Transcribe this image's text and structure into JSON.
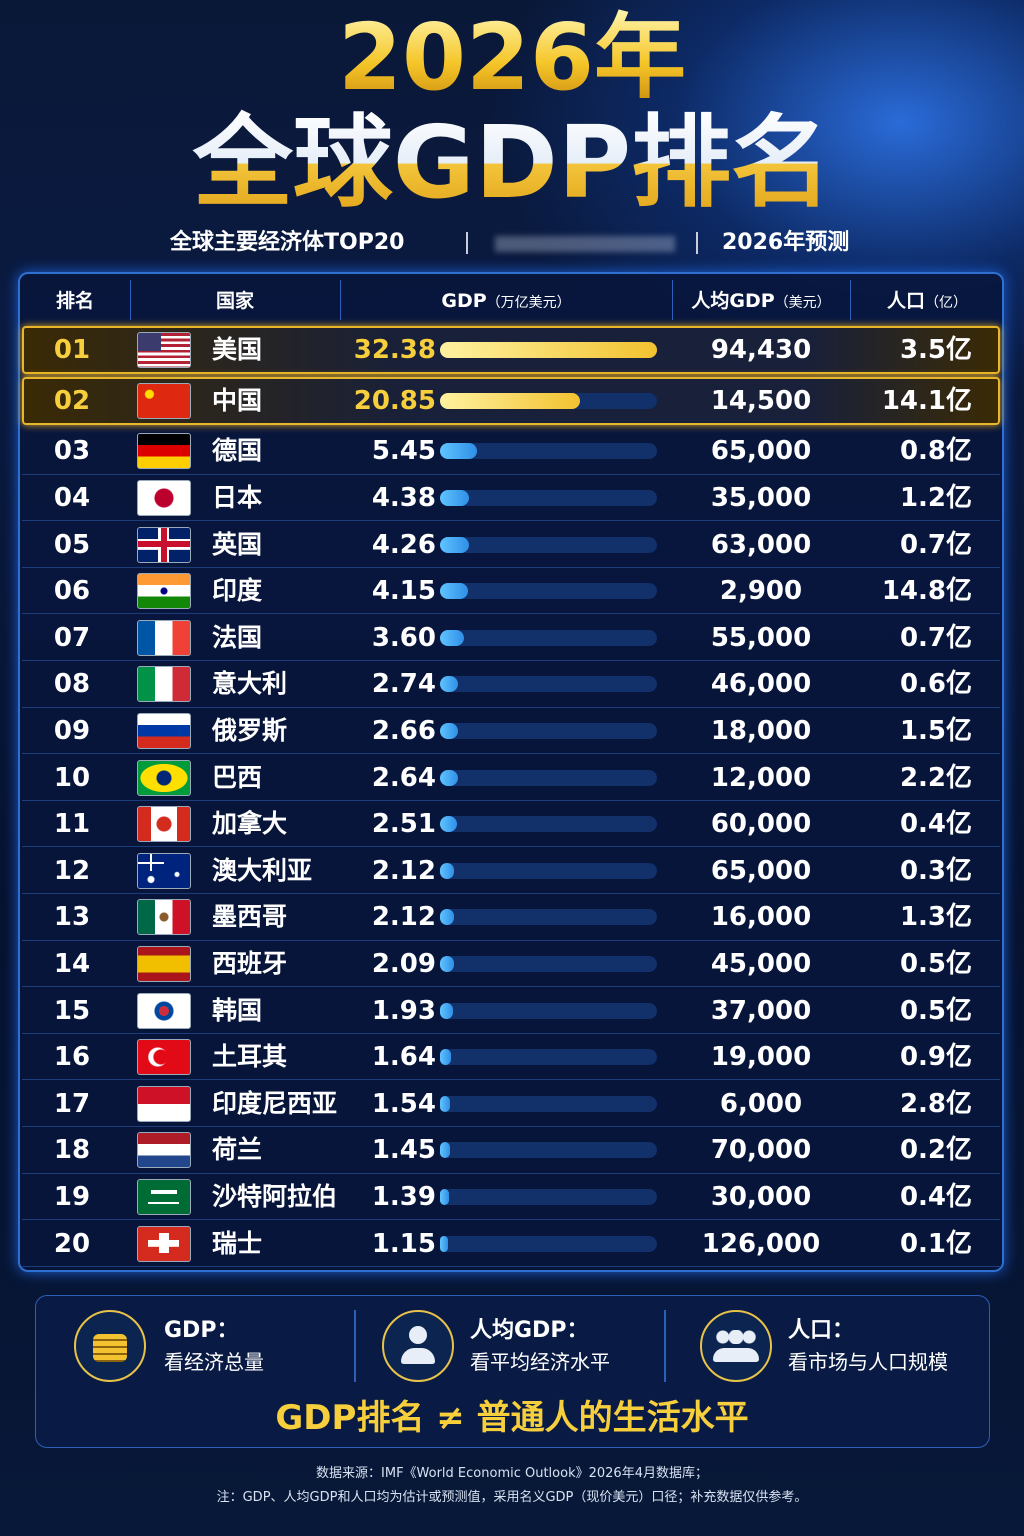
{
  "header": {
    "title_line1": "2026年",
    "title_line2": "全球GDP排名",
    "subtitle": [
      "全球主要经济体TOP20",
      "2026年预测"
    ]
  },
  "table": {
    "columns": [
      {
        "label": "排名"
      },
      {
        "label": "国家"
      },
      {
        "label": "GDP",
        "unit": "（万亿美元）"
      },
      {
        "label": "人均GDP",
        "unit": "（美元）"
      },
      {
        "label": "人口",
        "unit": "（亿）"
      }
    ],
    "rows": [
      [
        "01",
        "美国",
        "32.38",
        "94,430",
        "3.5亿"
      ],
      [
        "02",
        "中国",
        "20.85",
        "14,500",
        "14.1亿"
      ],
      [
        "03",
        "德国",
        "5.45",
        "65,000",
        "0.8亿"
      ],
      [
        "04",
        "日本",
        "4.38",
        "35,000",
        "1.2亿"
      ],
      [
        "05",
        "英国",
        "4.26",
        "63,000",
        "0.7亿"
      ],
      [
        "06",
        "印度",
        "4.15",
        "2,900",
        "14.8亿"
      ],
      [
        "07",
        "法国",
        "3.60",
        "55,000",
        "0.7亿"
      ],
      [
        "08",
        "意大利",
        "2.74",
        "46,000",
        "0.6亿"
      ],
      [
        "09",
        "俄罗斯",
        "2.66",
        "18,000",
        "1.5亿"
      ],
      [
        "10",
        "巴西",
        "2.64",
        "12,000",
        "2.2亿"
      ],
      [
        "11",
        "加拿大",
        "2.51",
        "60,000",
        "0.4亿"
      ],
      [
        "12",
        "澳大利亚",
        "2.12",
        "65,000",
        "0.3亿"
      ],
      [
        "13",
        "墨西哥",
        "2.12",
        "16,000",
        "1.3亿"
      ],
      [
        "14",
        "西班牙",
        "2.09",
        "45,000",
        "0.5亿"
      ],
      [
        "15",
        "韩国",
        "1.93",
        "37,000",
        "0.5亿"
      ],
      [
        "16",
        "土耳其",
        "1.64",
        "19,000",
        "0.9亿"
      ],
      [
        "17",
        "印度尼西亚",
        "1.54",
        "6,000",
        "2.8亿"
      ],
      [
        "18",
        "荷兰",
        "1.45",
        "70,000",
        "0.2亿"
      ],
      [
        "19",
        "沙特阿拉伯",
        "1.39",
        "30,000",
        "0.4亿"
      ],
      [
        "20",
        "瑞士",
        "1.15",
        "126,000",
        "0.1亿"
      ]
    ]
  },
  "legend": [
    {
      "title": "GDP：",
      "text": "看经济总量"
    },
    {
      "title": "人均GDP：",
      "text": "看平均经济水平"
    },
    {
      "title": "人口：",
      "text": "看市场与人口规模"
    }
  ],
  "slogan": "GDP排名 ≠ 普通人的生活水平",
  "footnotes": [
    "数据来源：IMF《World Economic Outlook》2026年4月数据库；",
    "注：GDP、人均GDP和人口均为估计或预测值，采用名义GDP（现价美元）口径；补充数据仅供参考。"
  ]
}
